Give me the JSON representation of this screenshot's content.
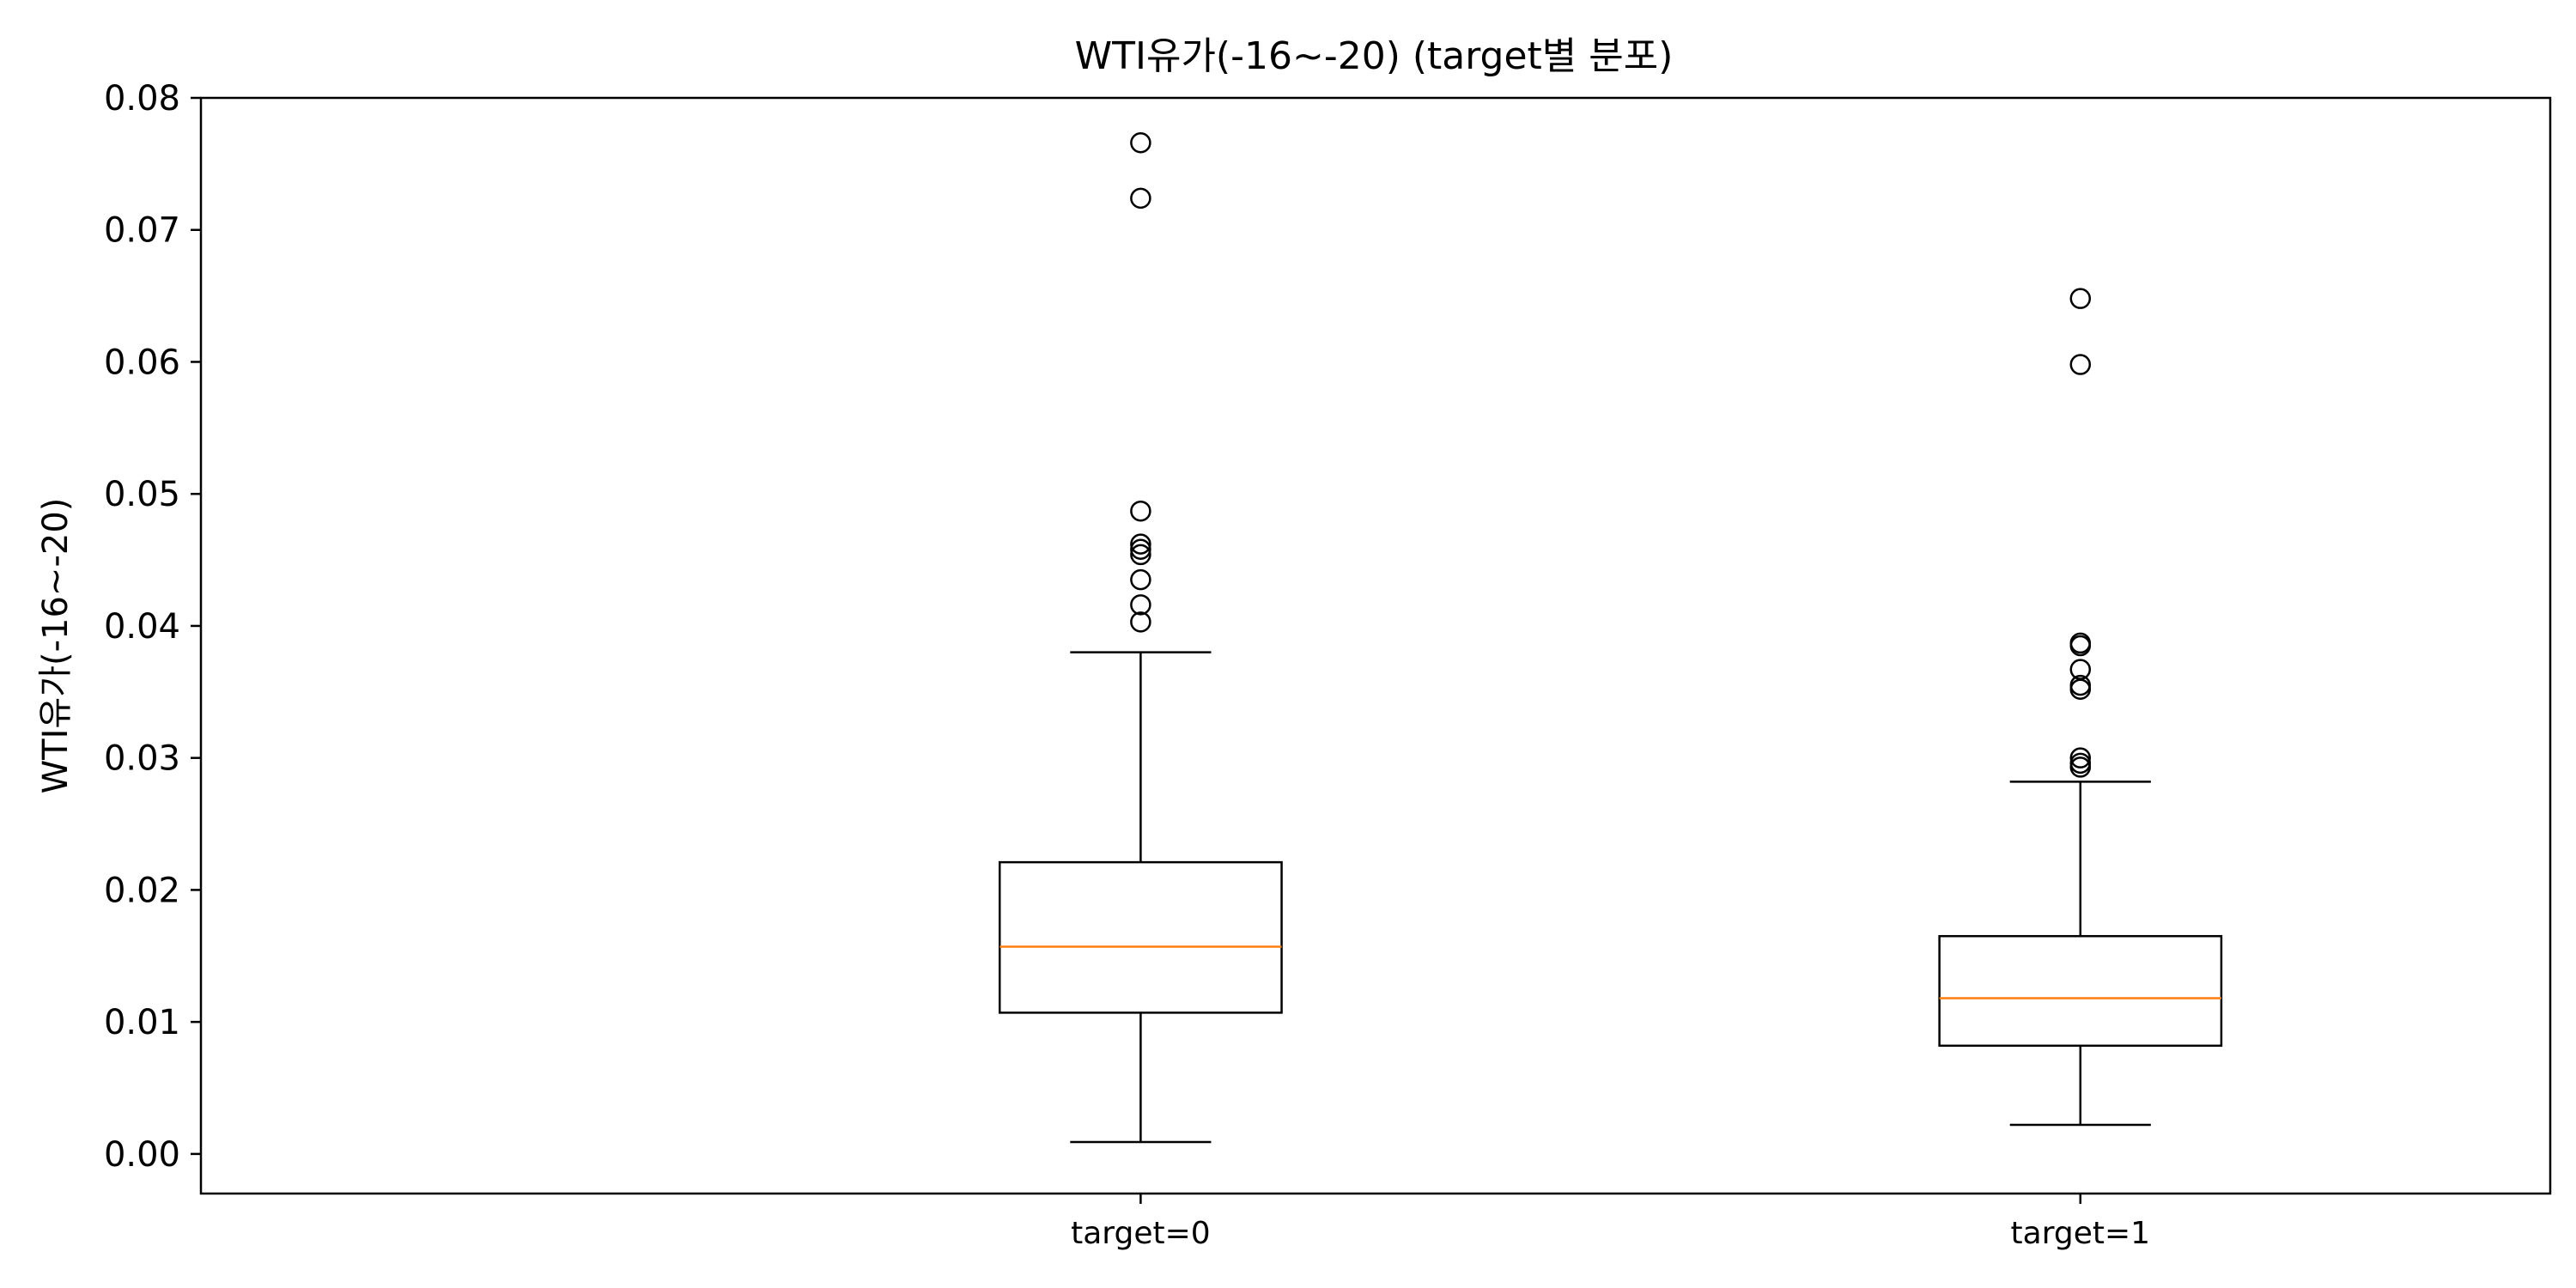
{
  "chart_data": {
    "type": "box",
    "title": "WTI유가(-16~-20) (target별 분포)",
    "xlabel": "",
    "ylabel": "WTI유가(-16~-20)",
    "ylim": [
      -0.003,
      0.08
    ],
    "yticks": [
      "0.00",
      "0.01",
      "0.02",
      "0.03",
      "0.04",
      "0.05",
      "0.06",
      "0.07",
      "0.08"
    ],
    "ytick_values": [
      0.0,
      0.01,
      0.02,
      0.03,
      0.04,
      0.05,
      0.06,
      0.07,
      0.08
    ],
    "categories": [
      "target=0",
      "target=1"
    ],
    "grid": false,
    "colors": {
      "box": "#000000",
      "median": "#ff7f0e",
      "flier": "#000000"
    },
    "boxes": [
      {
        "category": "target=0",
        "whisker_low": 0.0009,
        "q1": 0.0107,
        "median": 0.0157,
        "q3": 0.0221,
        "whisker_high": 0.038,
        "fliers": [
          0.0403,
          0.0416,
          0.0435,
          0.0454,
          0.0458,
          0.0462,
          0.0487,
          0.0724,
          0.0766
        ]
      },
      {
        "category": "target=1",
        "whisker_low": 0.0022,
        "q1": 0.0082,
        "median": 0.0118,
        "q3": 0.0165,
        "whisker_high": 0.0282,
        "fliers": [
          0.0293,
          0.0296,
          0.03,
          0.0352,
          0.0355,
          0.0367,
          0.0385,
          0.0387,
          0.0598,
          0.0648
        ]
      }
    ]
  }
}
